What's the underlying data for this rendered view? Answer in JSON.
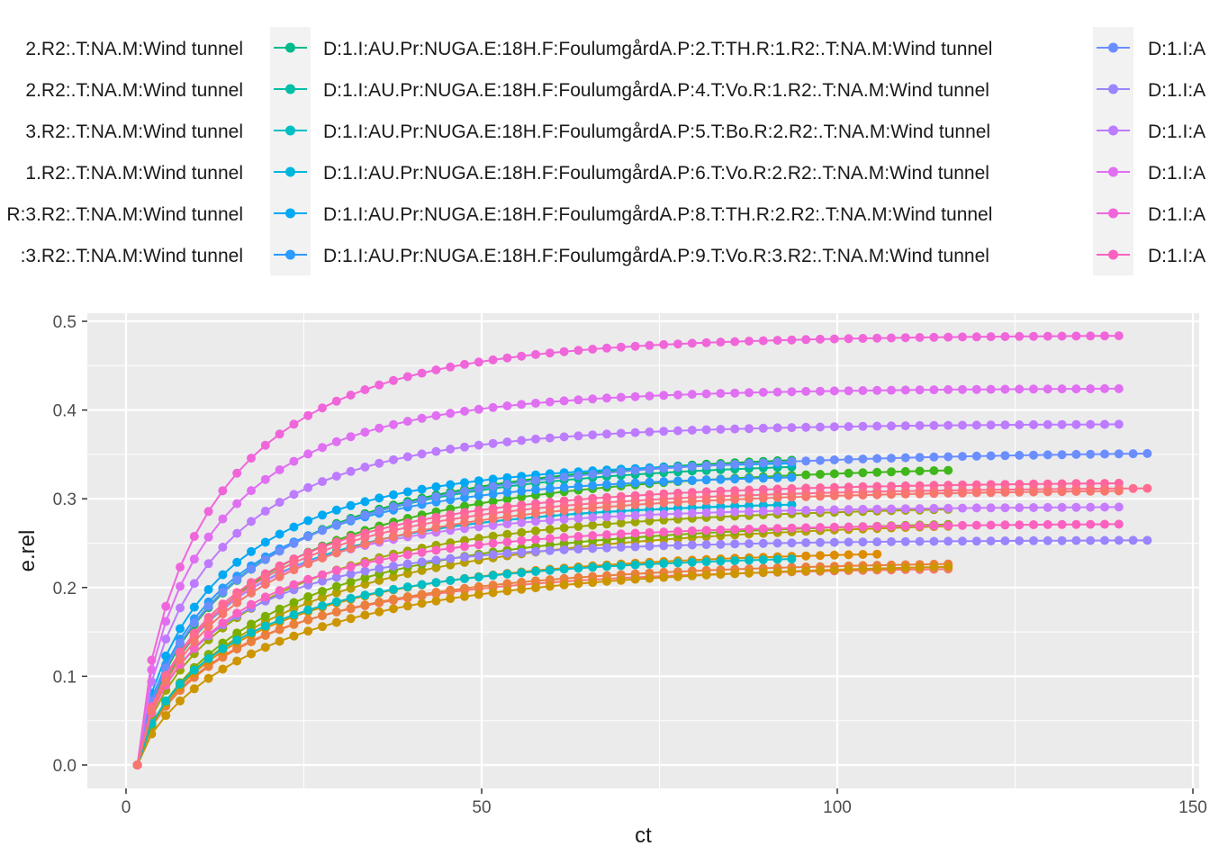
{
  "chart_data": {
    "type": "line",
    "xlabel": "ct",
    "ylabel": "e.rel",
    "xlim": [
      -10,
      150
    ],
    "ylim": [
      -0.025,
      0.505
    ],
    "x_ticks": [
      0,
      50,
      100,
      150
    ],
    "y_ticks": [
      0.0,
      0.1,
      0.2,
      0.3,
      0.4,
      0.5
    ],
    "x_tick_labels": [
      "0",
      "50",
      "100",
      "150"
    ],
    "y_tick_labels": [
      "0.0",
      "0.1",
      "0.2",
      "0.3",
      "0.4",
      "0.5"
    ],
    "grid": true,
    "legend_position": "top",
    "legend_columns": [
      {
        "entries": [
          {
            "label": "2.R2:.T:NA.M:Wind tunnel",
            "color": "#C77CFF"
          },
          {
            "label": "2.R2:.T:NA.M:Wind tunnel",
            "color": "#C77CFF"
          },
          {
            "label": "3.R2:.T:NA.M:Wind tunnel",
            "color": "#C77CFF"
          },
          {
            "label": "1.R2:.T:NA.M:Wind tunnel",
            "color": "#C77CFF"
          },
          {
            "label": "R:3.R2:.T:NA.M:Wind tunnel",
            "color": "#C77CFF"
          },
          {
            "label": ":3.R2:.T:NA.M:Wind tunnel",
            "color": "#C77CFF"
          }
        ]
      },
      {
        "entries": [
          {
            "label": "D:1.I:AU.Pr:NUGA.E:18H.F:FoulumgårdA.P:2.T:TH.R:1.R2:.T:NA.M:Wind tunnel",
            "color": "#00BA8B"
          },
          {
            "label": "D:1.I:AU.Pr:NUGA.E:18H.F:FoulumgårdA.P:4.T:Vo.R:1.R2:.T:NA.M:Wind tunnel",
            "color": "#00BFA5"
          },
          {
            "label": "D:1.I:AU.Pr:NUGA.E:18H.F:FoulumgårdA.P:5.T:Bo.R:2.R2:.T:NA.M:Wind tunnel",
            "color": "#00BFC4"
          },
          {
            "label": "D:1.I:AU.Pr:NUGA.E:18H.F:FoulumgårdA.P:6.T:Vo.R:2.R2:.T:NA.M:Wind tunnel",
            "color": "#00B6DD"
          },
          {
            "label": "D:1.I:AU.Pr:NUGA.E:18H.F:FoulumgårdA.P:8.T:TH.R:2.R2:.T:NA.M:Wind tunnel",
            "color": "#00A9F3"
          },
          {
            "label": "D:1.I:AU.Pr:NUGA.E:18H.F:FoulumgårdA.P:9.T:Vo.R:3.R2:.T:NA.M:Wind tunnel",
            "color": "#2A9BFF"
          }
        ]
      },
      {
        "entries": [
          {
            "label": "D:1.I:A",
            "color": "#6B8EFF"
          },
          {
            "label": "D:1.I:A",
            "color": "#9A84FF"
          },
          {
            "label": "D:1.I:A",
            "color": "#BD7BFF"
          },
          {
            "label": "D:1.I:A",
            "color": "#E06FF2"
          },
          {
            "label": "D:1.I:A",
            "color": "#F066DA"
          },
          {
            "label": "D:1.I:A",
            "color": "#FC61C0"
          }
        ]
      }
    ],
    "series": [
      {
        "color": "#F8766D",
        "tmax": 116,
        "ymax": 0.225,
        "k": 0.06,
        "p": 0.72
      },
      {
        "color": "#EB7F3C",
        "tmax": 116,
        "ymax": 0.232,
        "k": 0.055,
        "p": 0.72
      },
      {
        "color": "#DE8C00",
        "tmax": 107,
        "ymax": 0.245,
        "k": 0.055,
        "p": 0.72
      },
      {
        "color": "#CD9600",
        "tmax": 116,
        "ymax": 0.231,
        "k": 0.045,
        "p": 0.75
      },
      {
        "color": "#B79F00",
        "tmax": 116,
        "ymax": 0.28,
        "k": 0.045,
        "p": 0.72
      },
      {
        "color": "#9DA700",
        "tmax": 116,
        "ymax": 0.295,
        "k": 0.055,
        "p": 0.72
      },
      {
        "color": "#7CAE00",
        "tmax": 116,
        "ymax": 0.278,
        "k": 0.05,
        "p": 0.75
      },
      {
        "color": "#3FB71B",
        "tmax": 116,
        "ymax": 0.34,
        "k": 0.055,
        "p": 0.72
      },
      {
        "color": "#00BA38",
        "tmax": 94,
        "ymax": 0.355,
        "k": 0.06,
        "p": 0.72
      },
      {
        "color": "#00BA8B",
        "tmax": 94,
        "ymax": 0.345,
        "k": 0.065,
        "p": 0.72
      },
      {
        "color": "#00BFA5",
        "tmax": 94,
        "ymax": 0.3,
        "k": 0.07,
        "p": 0.72
      },
      {
        "color": "#00BFC4",
        "tmax": 94,
        "ymax": 0.24,
        "k": 0.06,
        "p": 0.72
      },
      {
        "color": "#00B6DD",
        "tmax": 94,
        "ymax": 0.3,
        "k": 0.07,
        "p": 0.72
      },
      {
        "color": "#00A9F3",
        "tmax": 94,
        "ymax": 0.345,
        "k": 0.08,
        "p": 0.72
      },
      {
        "color": "#2A9BFF",
        "tmax": 94,
        "ymax": 0.33,
        "k": 0.075,
        "p": 0.72
      },
      {
        "color": "#6B8EFF",
        "tmax": 144,
        "ymax": 0.355,
        "k": 0.06,
        "p": 0.7
      },
      {
        "color": "#9A84FF",
        "tmax": 144,
        "ymax": 0.254,
        "k": 0.08,
        "p": 0.72
      },
      {
        "color": "#BD7BFF",
        "tmax": 140,
        "ymax": 0.385,
        "k": 0.085,
        "p": 0.72
      },
      {
        "color": "#C77CFF",
        "tmax": 140,
        "ymax": 0.292,
        "k": 0.075,
        "p": 0.72
      },
      {
        "color": "#E06FF2",
        "tmax": 140,
        "ymax": 0.425,
        "k": 0.09,
        "p": 0.72
      },
      {
        "color": "#F066DA",
        "tmax": 140,
        "ymax": 0.485,
        "k": 0.085,
        "p": 0.72
      },
      {
        "color": "#FC61C0",
        "tmax": 140,
        "ymax": 0.273,
        "k": 0.07,
        "p": 0.72
      },
      {
        "color": "#FF64A0",
        "tmax": 140,
        "ymax": 0.32,
        "k": 0.065,
        "p": 0.72
      },
      {
        "color": "#FF6C8F",
        "tmax": 144,
        "ymax": 0.314,
        "k": 0.065,
        "p": 0.72
      },
      {
        "color": "#F8766D",
        "tmax": 140,
        "ymax": 0.312,
        "k": 0.06,
        "p": 0.72
      }
    ]
  }
}
